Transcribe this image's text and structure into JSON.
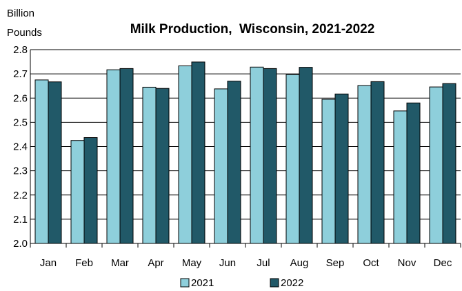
{
  "chart_data": {
    "type": "bar",
    "title": "Milk Production,  Wisconsin, 2021-2022",
    "ylabel_lines": [
      "Billion",
      "Pounds"
    ],
    "xlabel": "",
    "categories": [
      "Jan",
      "Feb",
      "Mar",
      "Apr",
      "May",
      "Jun",
      "Jul",
      "Aug",
      "Sep",
      "Oct",
      "Nov",
      "Dec"
    ],
    "series": [
      {
        "name": "2021",
        "color": "#8ecfdb",
        "values": [
          2.675,
          2.425,
          2.717,
          2.645,
          2.733,
          2.638,
          2.728,
          2.697,
          2.595,
          2.652,
          2.547,
          2.646
        ]
      },
      {
        "name": "2022",
        "color": "#215968",
        "values": [
          2.667,
          2.437,
          2.722,
          2.64,
          2.749,
          2.67,
          2.722,
          2.727,
          2.617,
          2.668,
          2.58,
          2.66
        ]
      }
    ],
    "ylim": [
      2.0,
      2.8
    ],
    "yticks": [
      "2.0",
      "2.1",
      "2.2",
      "2.3",
      "2.4",
      "2.5",
      "2.6",
      "2.7",
      "2.8"
    ],
    "grid": true,
    "legend_position": "bottom-center"
  }
}
